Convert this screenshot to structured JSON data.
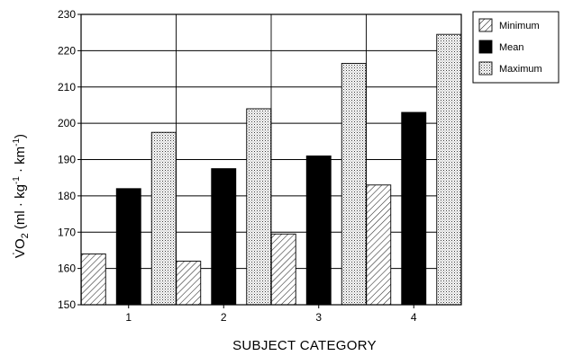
{
  "chart_data": {
    "type": "bar",
    "categories": [
      "1",
      "2",
      "3",
      "4"
    ],
    "series": [
      {
        "name": "Minimum",
        "values": [
          164,
          162,
          169.5,
          183
        ],
        "fill": "hatch"
      },
      {
        "name": "Mean",
        "values": [
          182,
          187.5,
          191,
          203
        ],
        "fill": "solid"
      },
      {
        "name": "Maximum",
        "values": [
          197.5,
          204,
          216.5,
          224.5
        ],
        "fill": "dots"
      }
    ],
    "xlabel": "SUBJECT CATEGORY",
    "ylabel": {
      "main": "V̇O",
      "sub": "2",
      "unit_open": " (ml · kg",
      "exp1": "-1",
      "unit_mid": " · km",
      "exp2": "-1",
      "unit_close": ")"
    },
    "ylim": [
      150,
      230
    ],
    "yticks": [
      150,
      160,
      170,
      180,
      190,
      200,
      210,
      220,
      230
    ],
    "grid": true,
    "legend_position": "top-right",
    "colors": {
      "mean": "#000000",
      "frame": "#000000",
      "background": "#ffffff"
    }
  }
}
